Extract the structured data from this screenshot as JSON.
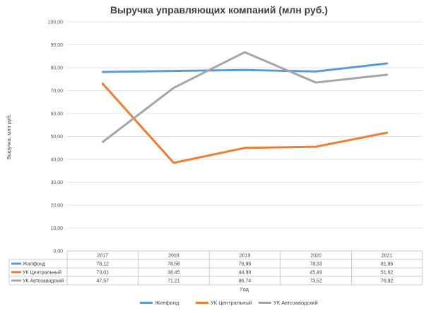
{
  "chart_data": {
    "type": "line",
    "title": "Выручка управляющих компаний (млн руб.)",
    "xlabel": "Год",
    "ylabel": "Выручка, млн руб.",
    "categories": [
      "2017",
      "2018",
      "2019",
      "2020",
      "2021"
    ],
    "ylim": [
      0,
      100
    ],
    "y_ticks": [
      "0,00",
      "10,00",
      "20,00",
      "30,00",
      "40,00",
      "50,00",
      "60,00",
      "70,00",
      "80,00",
      "90,00",
      "100,00"
    ],
    "grid": true,
    "legend_position": "bottom",
    "series": [
      {
        "name": "Жилфонд",
        "color": "#5b9bd5",
        "values": [
          78.12,
          78.58,
          78.99,
          78.33,
          81.86
        ],
        "labels": [
          "78,12",
          "78,58",
          "78,99",
          "78,33",
          "81,86"
        ]
      },
      {
        "name": "УК Центральный",
        "color": "#ed7d31",
        "values": [
          73.01,
          38.45,
          44.99,
          45.49,
          51.62
        ],
        "labels": [
          "73,01",
          "38,45",
          "44,99",
          "45,49",
          "51,62"
        ]
      },
      {
        "name": "УК Автозаводский",
        "color": "#a5a5a5",
        "values": [
          47.57,
          71.21,
          86.74,
          73.52,
          76.92
        ],
        "labels": [
          "47,57",
          "71,21",
          "86,74",
          "73,52",
          "76,92"
        ]
      }
    ]
  }
}
